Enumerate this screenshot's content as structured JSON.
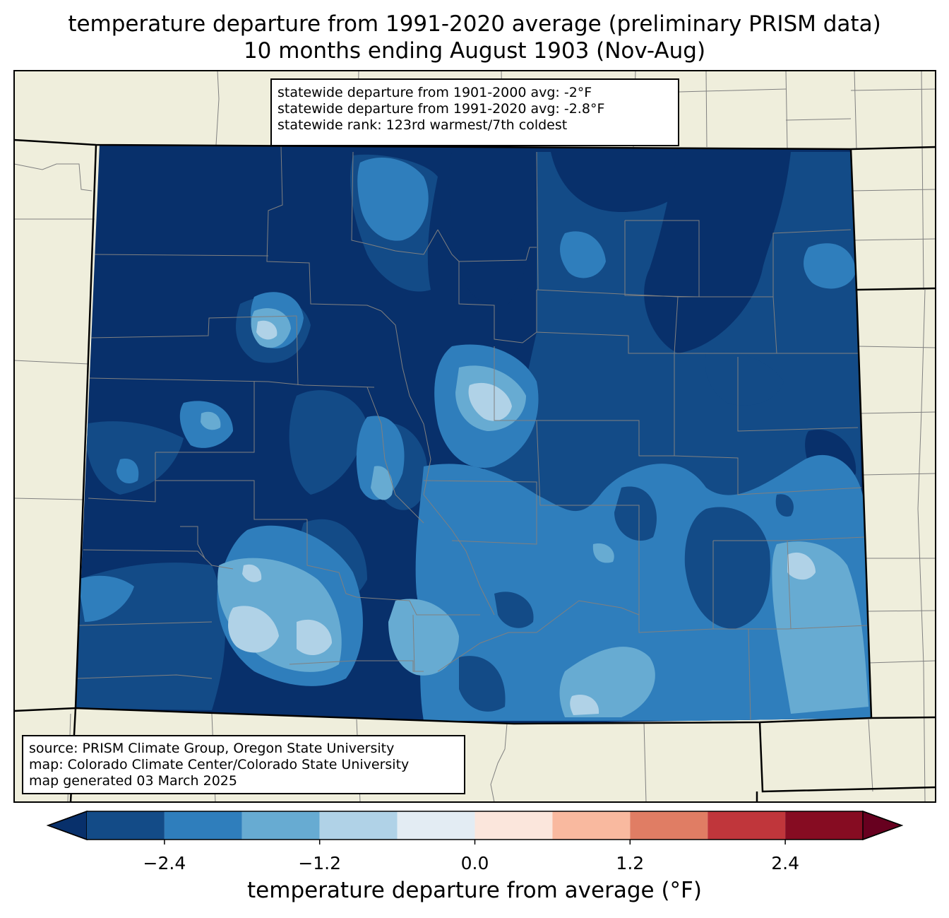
{
  "title": {
    "line1": "temperature departure from 1991-2020 average (preliminary PRISM data)",
    "line2": "10 months ending August 1903 (Nov-Aug)"
  },
  "stats": {
    "line1": "statewide departure from 1901-2000 avg: -2°F",
    "line2": "statewide departure from 1991-2020 avg: -2.8°F",
    "line3": "statewide rank: 123rd warmest/7th coldest"
  },
  "source": {
    "line1": "source: PRISM Climate Group, Oregon State University",
    "line2": "map: Colorado Climate Center/Colorado State University",
    "line3": "map generated 03 March 2025"
  },
  "colorbar": {
    "label": "temperature departure from average (°F)",
    "ticks": [
      "−2.4",
      "−1.2",
      "0.0",
      "1.2",
      "2.4"
    ],
    "tick_values": [
      -2.4,
      -1.2,
      0.0,
      1.2,
      2.4
    ],
    "bounds": [
      -3.0,
      3.0
    ],
    "colors": [
      "#08306b",
      "#134b87",
      "#2f7ebc",
      "#67abd2",
      "#b0d2e7",
      "#e3ecf3",
      "#fbe6dc",
      "#f9b99f",
      "#e07d64",
      "#c0363b",
      "#860c22",
      "#67001f"
    ]
  },
  "colors": {
    "land": "#efeedc",
    "state_border": "#000000",
    "county_border": "#808080"
  }
}
